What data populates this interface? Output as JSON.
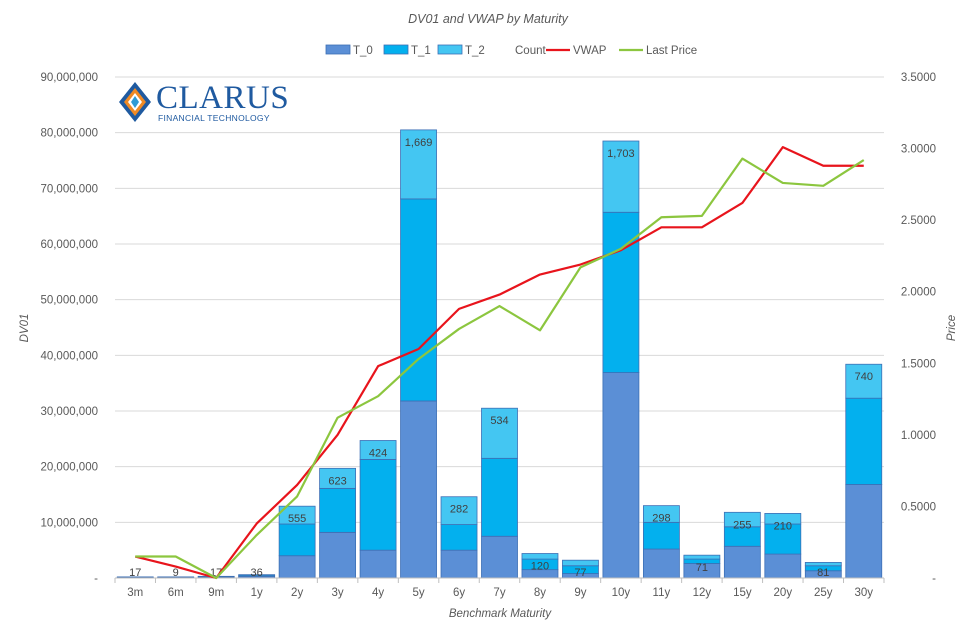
{
  "chart_data": {
    "type": "bar",
    "title": "DV01 and VWAP by Maturity",
    "xlabel": "Benchmark Maturity",
    "ylabel": "DV01",
    "y2label": "Price",
    "ylim": [
      0,
      90000000
    ],
    "y2lim": [
      0,
      3.5
    ],
    "yticks": [
      "-",
      "10,000,000",
      "20,000,000",
      "30,000,000",
      "40,000,000",
      "50,000,000",
      "60,000,000",
      "70,000,000",
      "80,000,000",
      "90,000,000"
    ],
    "y2ticks": [
      "-",
      "0.5000",
      "1.0000",
      "1.5000",
      "2.0000",
      "2.5000",
      "3.0000",
      "3.5000"
    ],
    "categories": [
      "3m",
      "6m",
      "9m",
      "1y",
      "2y",
      "3y",
      "4y",
      "5y",
      "6y",
      "7y",
      "8y",
      "9y",
      "10y",
      "11y",
      "12y",
      "15y",
      "20y",
      "25y",
      "30y"
    ],
    "legend": [
      "T_0",
      "T_1",
      "T_2",
      "Count",
      "VWAP",
      "Last Price"
    ],
    "legend_position": "top",
    "series": [
      {
        "name": "T_0",
        "kind": "bar",
        "color": "#5b8fd6",
        "values": [
          100000,
          100000,
          200000,
          300000,
          4000000,
          8200000,
          5000000,
          31800000,
          5000000,
          7500000,
          1500000,
          800000,
          36900000,
          5200000,
          2600000,
          5700000,
          4300000,
          1300000,
          16800000
        ]
      },
      {
        "name": "T_1",
        "kind": "bar",
        "color": "#03b0ee",
        "values": [
          100000,
          100000,
          100000,
          200000,
          5700000,
          7900000,
          16300000,
          36300000,
          4600000,
          14000000,
          1900000,
          1400000,
          28800000,
          4800000,
          800000,
          3500000,
          5400000,
          900000,
          15500000
        ]
      },
      {
        "name": "T_2",
        "kind": "bar",
        "color": "#44c6f2",
        "values": [
          0,
          0,
          0,
          100000,
          3200000,
          3600000,
          3400000,
          12400000,
          5000000,
          9000000,
          1000000,
          1000000,
          12800000,
          3000000,
          700000,
          2600000,
          1900000,
          600000,
          6100000
        ]
      },
      {
        "name": "Count",
        "kind": "label",
        "values": [
          17,
          9,
          17,
          36,
          555,
          623,
          424,
          1669,
          282,
          534,
          120,
          77,
          1703,
          298,
          71,
          255,
          210,
          81,
          740
        ]
      },
      {
        "name": "VWAP",
        "kind": "line",
        "color": "#e8141c",
        "values": [
          0.15,
          0.08,
          0.0,
          0.38,
          0.65,
          1.0,
          1.48,
          1.6,
          1.88,
          1.98,
          2.12,
          2.19,
          2.29,
          2.45,
          2.45,
          2.62,
          3.01,
          2.88,
          2.88
        ]
      },
      {
        "name": "Last Price",
        "kind": "line",
        "color": "#8cc63f",
        "values": [
          0.15,
          0.15,
          0.0,
          0.3,
          0.57,
          1.12,
          1.27,
          1.53,
          1.74,
          1.9,
          1.73,
          2.17,
          2.3,
          2.52,
          2.53,
          2.93,
          2.76,
          2.74,
          2.92
        ]
      }
    ]
  },
  "logo": {
    "main": "CLARUS",
    "sub": "FINANCIAL TECHNOLOGY"
  }
}
